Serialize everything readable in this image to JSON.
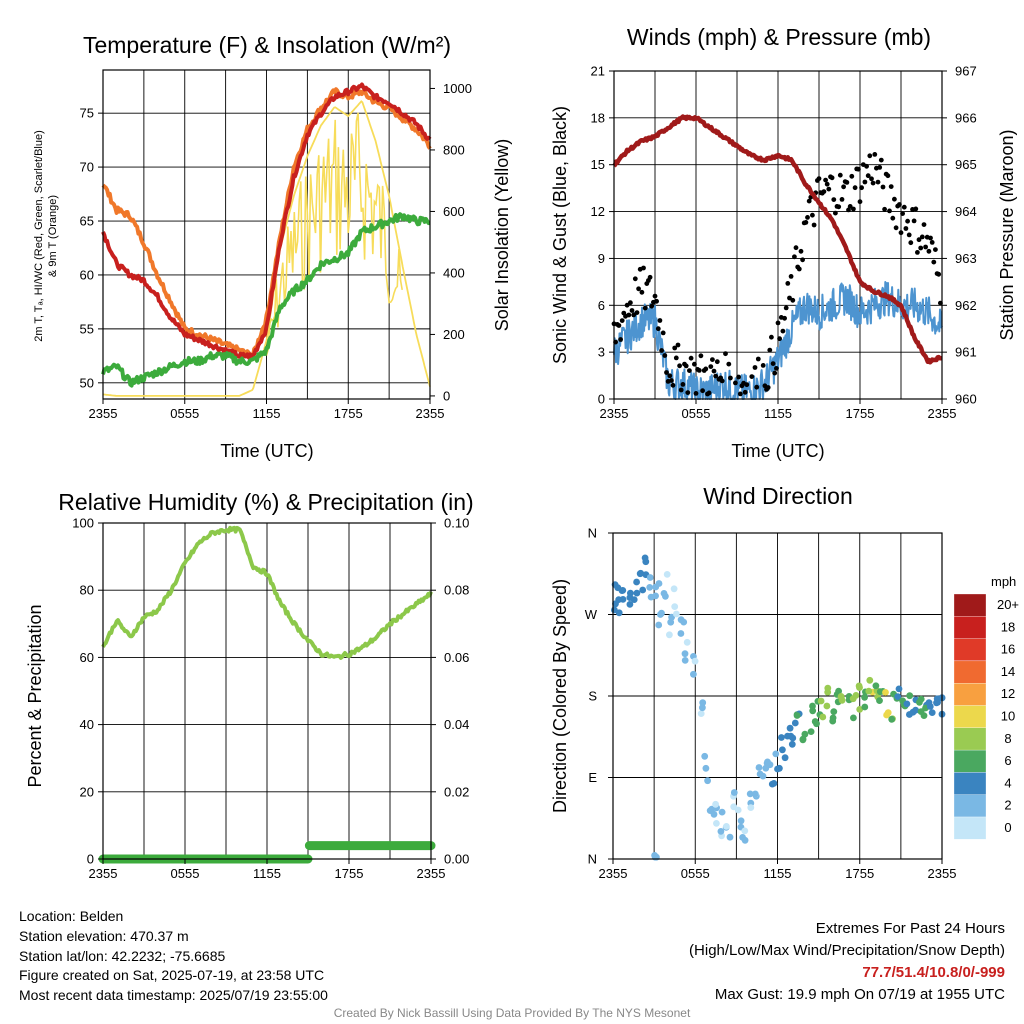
{
  "panels": {
    "temp": {
      "title": "Temperature (F) & Insolation (W/m²)",
      "ylabel_left_1": "2m T, Tₐ, HI/WC (Red, Green, Scarlet/Blue)",
      "ylabel_left_2": "& 9m T (Orange)",
      "ylabel_right": "Solar Insolation (Yellow)",
      "xlabel": "Time (UTC)",
      "yticks_left": [
        50,
        55,
        60,
        65,
        70,
        75
      ],
      "yticks_right": [
        0,
        200,
        400,
        600,
        800,
        1000
      ]
    },
    "wind": {
      "title": "Winds (mph) & Pressure (mb)",
      "ylabel_left": "Sonic Wind & Gust (Blue, Black)",
      "ylabel_right": "Station Pressure (Maroon)",
      "xlabel": "Time (UTC)",
      "yticks_left": [
        0,
        3,
        6,
        9,
        12,
        15,
        18,
        21
      ],
      "yticks_right": [
        960,
        961,
        962,
        963,
        964,
        965,
        966,
        967
      ]
    },
    "rh": {
      "title": "Relative Humidity (%) & Precipitation (in)",
      "ylabel_left": "Percent & Precipitation",
      "yticks_left": [
        0,
        20,
        40,
        60,
        80,
        100
      ],
      "yticks_right": [
        "0.00",
        "0.02",
        "0.04",
        "0.06",
        "0.08",
        "0.10"
      ]
    },
    "dir": {
      "title": "Wind Direction",
      "ylabel_left": "Direction (Colored By Speed)",
      "yticks_left": [
        "N",
        "E",
        "S",
        "W",
        "N"
      ],
      "legend_unit": "mph",
      "legend_labels": [
        "20+",
        "18",
        "16",
        "14",
        "12",
        "10",
        "8",
        "6",
        "4",
        "2",
        "0"
      ],
      "legend_colors": [
        "#a01a1a",
        "#c8201e",
        "#e03a28",
        "#f06a30",
        "#f8a040",
        "#ecd84c",
        "#9acb52",
        "#4aa860",
        "#3a84c0",
        "#7ab8e4",
        "#c4e6f8"
      ]
    }
  },
  "xticks": [
    "2355",
    "0555",
    "1155",
    "1755",
    "2355"
  ],
  "colors": {
    "temp_red": "#c8201e",
    "dewpoint_green": "#3cab3c",
    "temp9m_orange": "#f0782a",
    "solar_yellow": "#f7dc5a",
    "wind_blue": "#4d94d0",
    "gust_black": "#000000",
    "pressure_maroon": "#a01a1a",
    "rh_green": "#8cc84a",
    "precip_green": "#3cab3c"
  },
  "chart_data": [
    {
      "type": "line",
      "title": "Temperature (F) & Insolation (W/m²)",
      "xlabel": "Time (UTC)",
      "ylabel": "2m T, Td, HI/WC (Red, Green, Scarlet/Blue) & 9m T (Orange)",
      "y2label": "Solar Insolation (Yellow)",
      "ylim": [
        48.5,
        79
      ],
      "y2lim": [
        -10,
        1060
      ],
      "x_hours": [
        0,
        1,
        2,
        3,
        4,
        5,
        6,
        7,
        8,
        9,
        10,
        11,
        12,
        13,
        14,
        15,
        16,
        17,
        18,
        19,
        20,
        21,
        22,
        23,
        24
      ],
      "series": [
        {
          "name": "2m T",
          "values": [
            64,
            61,
            60,
            59.5,
            58,
            56,
            54.5,
            54,
            53.5,
            53,
            52.5,
            52.5,
            55,
            63,
            69,
            73,
            75,
            76.5,
            77,
            77.5,
            76.5,
            76,
            75,
            74,
            72.5
          ]
        },
        {
          "name": "9m T",
          "values": [
            68.5,
            66,
            65.5,
            63,
            60,
            57.5,
            55,
            54.5,
            54,
            53.5,
            53,
            52.5,
            56,
            63.5,
            70,
            73.5,
            75.5,
            77,
            76.5,
            77,
            76,
            75.5,
            74.5,
            73.5,
            72
          ]
        },
        {
          "name": "Td",
          "values": [
            51,
            51.5,
            50,
            50.5,
            51,
            51.5,
            52,
            52,
            52.5,
            52.5,
            52,
            52,
            53,
            57,
            58.5,
            59.5,
            61,
            61.5,
            62,
            64,
            64.5,
            65,
            65.5,
            65,
            65
          ]
        },
        {
          "name": "Solar Insolation",
          "values": [
            5,
            0,
            0,
            0,
            0,
            0,
            0,
            0,
            0,
            0,
            0,
            20,
            180,
            480,
            650,
            780,
            880,
            940,
            910,
            960,
            830,
            650,
            420,
            200,
            30
          ]
        }
      ]
    },
    {
      "type": "line",
      "title": "Winds (mph) & Pressure (mb)",
      "xlabel": "Time (UTC)",
      "ylabel": "Sonic Wind & Gust (Blue, Black)",
      "y2label": "Station Pressure (Maroon)",
      "ylim": [
        0,
        21
      ],
      "y2lim": [
        960,
        967
      ],
      "x_hours": [
        0,
        1,
        2,
        3,
        4,
        5,
        6,
        7,
        8,
        9,
        10,
        11,
        12,
        13,
        14,
        15,
        16,
        17,
        18,
        19,
        20,
        21,
        22,
        23,
        24
      ],
      "series": [
        {
          "name": "Sonic Wind",
          "values": [
            3,
            4,
            5,
            5,
            1,
            1,
            0.5,
            0.5,
            1,
            0.5,
            0.5,
            1,
            2.5,
            4.5,
            6,
            5.5,
            6,
            6.5,
            5.5,
            6,
            6.5,
            6,
            6,
            5.5,
            4.5
          ]
        },
        {
          "name": "Gust",
          "values": [
            4,
            6,
            7,
            6.5,
            2,
            2,
            1.5,
            1.5,
            1.5,
            1,
            1,
            1.5,
            3.5,
            7,
            11,
            13,
            13.5,
            13,
            14,
            15,
            13,
            12,
            11,
            10,
            7
          ]
        },
        {
          "name": "Station Pressure",
          "values": [
            965,
            965.3,
            965.5,
            965.6,
            965.8,
            966.0,
            966.0,
            965.8,
            965.6,
            965.4,
            965.2,
            965.1,
            965.2,
            965.1,
            964.6,
            964.2,
            963.8,
            963.2,
            962.5,
            962.3,
            962.2,
            962.0,
            961.3,
            960.8,
            960.9
          ]
        }
      ]
    },
    {
      "type": "line",
      "title": "Relative Humidity (%) & Precipitation (in)",
      "ylabel": "Percent & Precipitation",
      "ylim": [
        0,
        100
      ],
      "y2lim": [
        0,
        0.1
      ],
      "x_hours": [
        0,
        1,
        2,
        3,
        4,
        5,
        6,
        7,
        8,
        9,
        10,
        11,
        12,
        13,
        14,
        15,
        16,
        17,
        18,
        19,
        20,
        21,
        22,
        23,
        24
      ],
      "series": [
        {
          "name": "Relative Humidity",
          "values": [
            63,
            71,
            66,
            72,
            74,
            80,
            88,
            94,
            97,
            98,
            98,
            87,
            85,
            76,
            70,
            65,
            61,
            60,
            61,
            63,
            66,
            70,
            73,
            76,
            79
          ]
        },
        {
          "name": "Precipitation",
          "values": [
            0,
            0,
            0,
            0,
            0,
            0,
            0,
            0,
            0,
            0,
            0,
            0,
            0,
            0,
            0,
            0,
            0.004,
            0.004,
            0.004,
            0.004,
            0.004,
            0.004,
            0.004,
            0.004,
            0.004
          ]
        }
      ]
    },
    {
      "type": "scatter",
      "title": "Wind Direction",
      "ylabel": "Direction (Colored By Speed)",
      "ylim": [
        0,
        360
      ],
      "y_tick_labels": [
        "N",
        "E",
        "S",
        "W",
        "N"
      ],
      "legend_unit": "mph",
      "points": [
        {
          "h": 0.1,
          "dir": 288,
          "spd": 4
        },
        {
          "h": 0.4,
          "dir": 286,
          "spd": 4
        },
        {
          "h": 0.8,
          "dir": 290,
          "spd": 4
        },
        {
          "h": 1.2,
          "dir": 292,
          "spd": 4
        },
        {
          "h": 1.6,
          "dir": 300,
          "spd": 4
        },
        {
          "h": 2.0,
          "dir": 310,
          "spd": 4
        },
        {
          "h": 2.4,
          "dir": 320,
          "spd": 4
        },
        {
          "h": 2.8,
          "dir": 300,
          "spd": 2
        },
        {
          "h": 3.0,
          "dir": 5,
          "spd": 2
        },
        {
          "h": 3.2,
          "dir": 290,
          "spd": 2
        },
        {
          "h": 3.5,
          "dir": 270,
          "spd": 2
        },
        {
          "h": 3.8,
          "dir": 305,
          "spd": 1
        },
        {
          "h": 4.2,
          "dir": 260,
          "spd": 1
        },
        {
          "h": 4.6,
          "dir": 285,
          "spd": 1
        },
        {
          "h": 5.0,
          "dir": 250,
          "spd": 1
        },
        {
          "h": 5.4,
          "dir": 230,
          "spd": 1
        },
        {
          "h": 6.0,
          "dir": 210,
          "spd": 1
        },
        {
          "h": 6.4,
          "dir": 170,
          "spd": 1
        },
        {
          "h": 6.8,
          "dir": 100,
          "spd": 2
        },
        {
          "h": 7.2,
          "dir": 60,
          "spd": 1
        },
        {
          "h": 7.6,
          "dir": 50,
          "spd": 1
        },
        {
          "h": 8.0,
          "dir": 40,
          "spd": 1
        },
        {
          "h": 8.4,
          "dir": 30,
          "spd": 1
        },
        {
          "h": 8.8,
          "dir": 60,
          "spd": 1
        },
        {
          "h": 9.2,
          "dir": 45,
          "spd": 1
        },
        {
          "h": 9.6,
          "dir": 20,
          "spd": 1
        },
        {
          "h": 10.0,
          "dir": 70,
          "spd": 1
        },
        {
          "h": 10.4,
          "dir": 80,
          "spd": 1
        },
        {
          "h": 10.8,
          "dir": 90,
          "spd": 2
        },
        {
          "h": 11.2,
          "dir": 100,
          "spd": 2
        },
        {
          "h": 11.6,
          "dir": 95,
          "spd": 3
        },
        {
          "h": 12.0,
          "dir": 110,
          "spd": 3
        },
        {
          "h": 12.4,
          "dir": 120,
          "spd": 4
        },
        {
          "h": 12.8,
          "dir": 135,
          "spd": 4
        },
        {
          "h": 13.2,
          "dir": 140,
          "spd": 5
        },
        {
          "h": 13.6,
          "dir": 150,
          "spd": 5
        },
        {
          "h": 14.0,
          "dir": 145,
          "spd": 6
        },
        {
          "h": 14.4,
          "dir": 155,
          "spd": 7
        },
        {
          "h": 14.8,
          "dir": 160,
          "spd": 6
        },
        {
          "h": 15.2,
          "dir": 170,
          "spd": 7
        },
        {
          "h": 15.6,
          "dir": 175,
          "spd": 8
        },
        {
          "h": 16.0,
          "dir": 165,
          "spd": 6
        },
        {
          "h": 16.4,
          "dir": 180,
          "spd": 7
        },
        {
          "h": 16.8,
          "dir": 190,
          "spd": 8
        },
        {
          "h": 17.2,
          "dir": 185,
          "spd": 6
        },
        {
          "h": 17.6,
          "dir": 170,
          "spd": 7
        },
        {
          "h": 18.0,
          "dir": 180,
          "spd": 8
        },
        {
          "h": 18.4,
          "dir": 175,
          "spd": 5
        },
        {
          "h": 18.8,
          "dir": 190,
          "spd": 9
        },
        {
          "h": 19.2,
          "dir": 185,
          "spd": 7
        },
        {
          "h": 19.6,
          "dir": 178,
          "spd": 6
        },
        {
          "h": 20.0,
          "dir": 172,
          "spd": 10
        },
        {
          "h": 20.4,
          "dir": 168,
          "spd": 7
        },
        {
          "h": 20.8,
          "dir": 182,
          "spd": 5
        },
        {
          "h": 21.2,
          "dir": 176,
          "spd": 6
        },
        {
          "h": 21.6,
          "dir": 170,
          "spd": 5
        },
        {
          "h": 22.0,
          "dir": 165,
          "spd": 4
        },
        {
          "h": 22.4,
          "dir": 172,
          "spd": 6
        },
        {
          "h": 22.8,
          "dir": 168,
          "spd": 5
        },
        {
          "h": 23.2,
          "dir": 163,
          "spd": 4
        },
        {
          "h": 23.6,
          "dir": 175,
          "spd": 4
        },
        {
          "h": 24.0,
          "dir": 174,
          "spd": 4
        }
      ]
    }
  ],
  "info": {
    "location": "Location: Belden",
    "elevation": "Station elevation: 470.37 m",
    "latlon": "Station lat/lon: 42.2232; -75.6685",
    "created": "Figure created on Sat, 2025-07-19, at 23:58 UTC",
    "recent": "Most recent data timestamp: 2025/07/19 23:55:00"
  },
  "extremes": {
    "heading": "Extremes For Past 24 Hours",
    "subheading": "(High/Low/Max Wind/Precipitation/Snow Depth)",
    "values": "77.7/51.4/10.8/0/-999",
    "max_gust": "Max Gust: 19.9 mph On 07/19 at 1955 UTC"
  },
  "credit": "Created By Nick Bassill Using Data Provided By The NYS Mesonet"
}
